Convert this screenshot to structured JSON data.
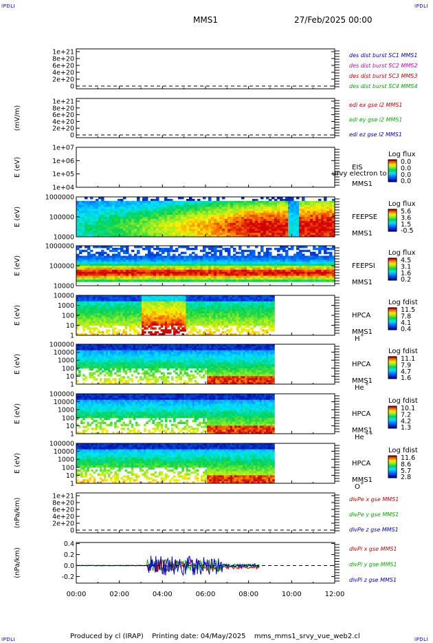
{
  "header": {
    "corner_tl": "IPDLI",
    "corner_tr": "IPDLI",
    "corner_bl": "IPDLI",
    "corner_br": "IPDLI",
    "spacecraft": "MMS1",
    "date": "27/Feb/2025 00:00"
  },
  "footer": {
    "produced_by": "Produced by cl (IRAP)",
    "printing_date": "Printing date: 04/May/2025",
    "script_name": "mms_mms1_srvy_vue_web2.cl"
  },
  "colors": {
    "axis": "#000000",
    "dashed_zero": "#000000",
    "sc1": "#0000cc",
    "sc2": "#cc00cc",
    "sc3": "#cc0000",
    "sc4": "#00aa00",
    "x_red": "#cc0000",
    "y_green": "#00aa00",
    "z_blue": "#0000cc"
  },
  "chart_data": {
    "type": "multi-panel time series and spectrograms",
    "time_axis": {
      "ticks": [
        "00:00",
        "02:00",
        "04:00",
        "06:00",
        "08:00",
        "10:00",
        "12:00"
      ],
      "range_hours": [
        0,
        12
      ]
    },
    "panels": [
      {
        "id": "p1",
        "type": "line",
        "ylabel": "",
        "yticks": [
          "1e+21",
          "8e+20",
          "6e+20",
          "4e+20",
          "2e+20",
          "0"
        ],
        "zero_dashed": true,
        "legend": [
          {
            "label": "des dist burst SC1 MMS1",
            "color": "#0000cc"
          },
          {
            "label": "des dist burst SC2 MMS2",
            "color": "#cc00cc"
          },
          {
            "label": "des dist burst SC3 MMS3",
            "color": "#cc0000"
          },
          {
            "label": "des dist burst SC4 MMS4",
            "color": "#00aa00"
          }
        ],
        "series": []
      },
      {
        "id": "p2",
        "type": "line",
        "ylabel": "(mV/m)",
        "yticks": [
          "1e+21",
          "8e+20",
          "6e+20",
          "4e+20",
          "2e+20",
          "0"
        ],
        "zero_dashed": true,
        "legend": [
          {
            "label": "edi ex gse l2 MMS1",
            "color": "#cc0000"
          },
          {
            "label": "edi ey gse l2 MMS1",
            "color": "#00aa00"
          },
          {
            "label": "edi ez gse l2 MMS1",
            "color": "#0000cc"
          }
        ],
        "series": []
      },
      {
        "id": "p3",
        "type": "heatmap",
        "ylabel": "E (eV)",
        "yticks": [
          "1e+07",
          "1e+06",
          "1e+05",
          "1e+04"
        ],
        "right_labels": [
          "EIS",
          "MMS1"
        ],
        "overlay_label": "urvy electron to",
        "colorbar": {
          "title": "Log flux",
          "ticks": [
            "0.0",
            "0.0",
            "0.0",
            "0.0"
          ]
        },
        "data_extent_hours": null
      },
      {
        "id": "p4",
        "type": "heatmap",
        "ylabel": "E (eV)",
        "yticks": [
          "1000000",
          "100000",
          "10000"
        ],
        "right_labels": [
          "FEEPSE",
          "MMS1"
        ],
        "colorbar": {
          "title": "Log flux",
          "ticks": [
            "5.6",
            "3.6",
            "1.5",
            "-0.5"
          ]
        },
        "data_extent_hours": [
          0,
          12
        ]
      },
      {
        "id": "p5",
        "type": "heatmap",
        "ylabel": "E (eV)",
        "yticks": [
          "1000000",
          "100000",
          "10000"
        ],
        "right_labels": [
          "FEEPSI",
          "MMS1"
        ],
        "colorbar": {
          "title": "Log flux",
          "ticks": [
            "4.5",
            "3.1",
            "1.6",
            "0.2"
          ]
        },
        "data_extent_hours": [
          0,
          12
        ]
      },
      {
        "id": "p6",
        "type": "heatmap",
        "ylabel": "E (eV)",
        "yticks": [
          "10000",
          "1000",
          "100",
          "10",
          "1"
        ],
        "right_labels": [
          "HPCA",
          "MMS1"
        ],
        "species": "H",
        "charge": "+",
        "colorbar": {
          "title": "Log fdist",
          "ticks": [
            "11.5",
            "7.8",
            "4.1",
            "0.4"
          ]
        },
        "data_extent_hours": [
          0,
          9.2
        ]
      },
      {
        "id": "p7",
        "type": "heatmap",
        "ylabel": "E (eV)",
        "yticks": [
          "100000",
          "10000",
          "1000",
          "100",
          "10",
          "1"
        ],
        "right_labels": [
          "HPCA",
          "MMS1"
        ],
        "species": "He",
        "charge": "+",
        "colorbar": {
          "title": "Log fdist",
          "ticks": [
            "11.1",
            "7.9",
            "4.7",
            "1.6"
          ]
        },
        "data_extent_hours": [
          0,
          9.2
        ]
      },
      {
        "id": "p8",
        "type": "heatmap",
        "ylabel": "E (eV)",
        "yticks": [
          "100000",
          "10000",
          "1000",
          "100",
          "10",
          "1"
        ],
        "right_labels": [
          "HPCA",
          "MMS1"
        ],
        "species": "He",
        "charge": "++",
        "colorbar": {
          "title": "Log fdist",
          "ticks": [
            "10.1",
            "7.2",
            "4.2",
            "1.3"
          ]
        },
        "data_extent_hours": [
          0,
          9.2
        ]
      },
      {
        "id": "p9",
        "type": "heatmap",
        "ylabel": "E (eV)",
        "yticks": [
          "100000",
          "10000",
          "1000",
          "100",
          "10",
          "1"
        ],
        "right_labels": [
          "HPCA",
          "MMS1"
        ],
        "species": "O",
        "charge": "+",
        "colorbar": {
          "title": "Log fdist",
          "ticks": [
            "11.6",
            "8.6",
            "5.7",
            "2.8"
          ]
        },
        "data_extent_hours": [
          0,
          9.2
        ]
      },
      {
        "id": "p10",
        "type": "line",
        "ylabel": "(nPa/km)",
        "yticks": [
          "1e+21",
          "8e+20",
          "6e+20",
          "4e+20",
          "2e+20",
          "0"
        ],
        "zero_dashed": true,
        "legend": [
          {
            "label": "divPe x gse MMS1",
            "color": "#cc0000"
          },
          {
            "label": "divPe y gse MMS1",
            "color": "#00aa00"
          },
          {
            "label": "divPe z gse MMS1",
            "color": "#0000cc"
          }
        ],
        "series": []
      },
      {
        "id": "p11",
        "type": "line",
        "ylabel": "(nPa/km)",
        "yticks": [
          "0.4",
          "0.2",
          "0.0",
          "-0.2"
        ],
        "ylim": [
          -0.32,
          0.42
        ],
        "zero_dashed": true,
        "legend": [
          {
            "label": "divPi x gse MMS1",
            "color": "#cc0000"
          },
          {
            "label": "divPi y gse MMS1",
            "color": "#00aa00"
          },
          {
            "label": "divPi z gse MMS1",
            "color": "#0000cc"
          }
        ],
        "series_extent_hours": [
          0,
          8.5
        ]
      }
    ]
  }
}
